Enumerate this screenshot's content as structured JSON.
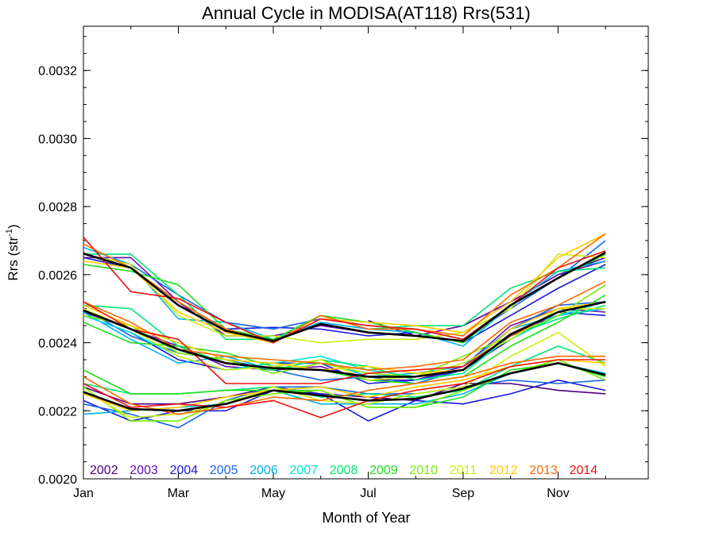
{
  "chart_data": {
    "type": "line",
    "title": "Annual Cycle in MODISA(AT118) Rrs(531)",
    "xlabel": "Month of Year",
    "ylabel": "Rrs (str",
    "ylabel_sup": "-1",
    "ylabel_end": ")",
    "xlim": [
      1,
      12.9
    ],
    "ylim": [
      0.002,
      0.00333
    ],
    "x_ticks": [
      {
        "x": 1,
        "label": "Jan"
      },
      {
        "x": 3,
        "label": "Mar"
      },
      {
        "x": 5,
        "label": "May"
      },
      {
        "x": 7,
        "label": "Jul"
      },
      {
        "x": 9,
        "label": "Sep"
      },
      {
        "x": 11,
        "label": "Nov"
      }
    ],
    "y_ticks": [
      {
        "y": 0.002,
        "label": "0.0020"
      },
      {
        "y": 0.0022,
        "label": "0.0022"
      },
      {
        "y": 0.0024,
        "label": "0.0024"
      },
      {
        "y": 0.0026,
        "label": "0.0026"
      },
      {
        "y": 0.0028,
        "label": "0.0028"
      },
      {
        "y": 0.003,
        "label": "0.0030"
      },
      {
        "y": 0.0032,
        "label": "0.0032"
      }
    ],
    "x": [
      1,
      2,
      3,
      4,
      5,
      6,
      7,
      8,
      9,
      10,
      11,
      12
    ],
    "legend": [
      {
        "label": "2002",
        "color": "#4b0082"
      },
      {
        "label": "2003",
        "color": "#6a0dad"
      },
      {
        "label": "2004",
        "color": "#1a1ad9"
      },
      {
        "label": "2005",
        "color": "#1565e6"
      },
      {
        "label": "2006",
        "color": "#00b0f0"
      },
      {
        "label": "2007",
        "color": "#00e5d8"
      },
      {
        "label": "2008",
        "color": "#00e676"
      },
      {
        "label": "2009",
        "color": "#22dd22"
      },
      {
        "label": "2010",
        "color": "#77ee00"
      },
      {
        "label": "2011",
        "color": "#ccee11"
      },
      {
        "label": "2012",
        "color": "#ffcc00"
      },
      {
        "label": "2013",
        "color": "#ff6a00"
      },
      {
        "label": "2014",
        "color": "#ee1111"
      }
    ],
    "series": [
      {
        "color": "#4b0082",
        "values": [
          null,
          null,
          null,
          null,
          null,
          null,
          0.002465,
          0.00242,
          0.00245,
          0.00252,
          0.0026,
          0.00265
        ]
      },
      {
        "color": "#6a0dad",
        "values": [
          0.00265,
          0.00265,
          0.00252,
          0.00242,
          0.00242,
          0.00245,
          0.00243,
          0.00242,
          0.00245,
          0.00252,
          0.0026,
          0.00264
        ]
      },
      {
        "color": "#1a1ad9",
        "values": [
          0.00265,
          0.00262,
          0.00252,
          0.00244,
          0.002445,
          0.00244,
          0.00242,
          0.00243,
          0.0024,
          0.00248,
          0.00256,
          0.00263
        ]
      },
      {
        "color": "#1565e6",
        "values": [
          0.00266,
          0.00263,
          0.00254,
          0.00246,
          0.00244,
          0.00247,
          0.00245,
          0.00244,
          0.00241,
          0.0025,
          0.00259,
          0.0027
        ]
      },
      {
        "color": "#00b0f0",
        "values": [
          0.00268,
          0.00263,
          0.00247,
          0.00246,
          0.00241,
          0.00246,
          0.00244,
          0.00243,
          0.00239,
          0.00251,
          0.00261,
          0.00264
        ]
      },
      {
        "color": "#00e676",
        "values": [
          0.00266,
          0.00266,
          0.00254,
          0.00241,
          0.00241,
          0.00248,
          0.00244,
          0.00245,
          0.00245,
          0.00256,
          0.00261,
          0.00262
        ]
      },
      {
        "color": "#22dd22",
        "values": [
          0.00263,
          0.00261,
          0.00257,
          0.00244,
          0.00241,
          0.00248,
          0.00246,
          0.00243,
          0.0024,
          0.00251,
          0.00259,
          0.00266
        ]
      },
      {
        "color": "#ccee11",
        "values": [
          0.00266,
          0.00263,
          0.00248,
          0.00242,
          0.00242,
          0.0024,
          0.00241,
          0.00241,
          0.00243,
          0.0025,
          0.00266,
          0.00265
        ]
      },
      {
        "color": "#ffcc00",
        "values": [
          0.00264,
          0.00262,
          0.00249,
          0.00243,
          0.0024,
          0.00247,
          0.00246,
          0.00245,
          0.00243,
          0.00252,
          0.00265,
          0.00272
        ]
      },
      {
        "color": "#ff6a00",
        "values": [
          0.00269,
          0.00262,
          0.00252,
          0.00244,
          0.0024,
          0.00248,
          0.00244,
          0.00244,
          0.00242,
          0.00254,
          0.00262,
          0.00272
        ]
      },
      {
        "color": "#ee1111",
        "values": [
          0.00271,
          0.00255,
          0.00253,
          0.00246,
          0.0024,
          0.00247,
          0.00245,
          0.00244,
          0.00241,
          0.00251,
          0.00262,
          0.00267
        ]
      },
      {
        "color": "#6a0dad",
        "values": [
          0.00249,
          0.00244,
          0.00239,
          0.00233,
          0.00232,
          0.00233,
          0.00229,
          0.00229,
          0.00233,
          0.00245,
          0.0025,
          0.00249
        ]
      },
      {
        "color": "#1a1ad9",
        "values": [
          0.00248,
          0.00243,
          0.00235,
          0.00232,
          0.00234,
          0.00234,
          0.00228,
          0.00229,
          0.00232,
          0.00241,
          0.00249,
          0.00248
        ]
      },
      {
        "color": "#1565e6",
        "values": [
          0.0025,
          0.00242,
          0.00237,
          0.00235,
          0.00232,
          0.00229,
          0.0023,
          0.00228,
          0.00232,
          0.00244,
          0.00251,
          0.00252
        ]
      },
      {
        "color": "#00b0f0",
        "values": [
          0.00249,
          0.00241,
          0.00234,
          0.00236,
          0.00232,
          0.00235,
          0.0023,
          0.00231,
          0.00233,
          0.00244,
          0.00248,
          0.0025
        ]
      },
      {
        "color": "#00e5d8",
        "values": [
          0.00248,
          0.00243,
          0.00236,
          0.00232,
          0.00234,
          0.00236,
          0.00232,
          0.0023,
          0.00234,
          0.00241,
          0.00248,
          0.00252
        ]
      },
      {
        "color": "#00e676",
        "values": [
          0.00251,
          0.0025,
          0.00239,
          0.00234,
          0.00232,
          0.00235,
          0.00233,
          0.00229,
          0.00231,
          0.00242,
          0.00247,
          0.00251
        ]
      },
      {
        "color": "#22dd22",
        "values": [
          0.00246,
          0.0024,
          0.00239,
          0.00237,
          0.00233,
          0.00232,
          0.00229,
          0.00228,
          0.0023,
          0.00239,
          0.00246,
          0.00254
        ]
      },
      {
        "color": "#77ee00",
        "values": [
          0.00248,
          0.00245,
          0.00237,
          0.00235,
          0.00231,
          0.00234,
          0.00231,
          0.0023,
          0.00236,
          0.00242,
          0.00248,
          0.00257
        ]
      },
      {
        "color": "#ccee11",
        "values": [
          0.0025,
          0.00244,
          0.00236,
          0.00232,
          0.00233,
          0.00235,
          0.00229,
          0.0023,
          0.00234,
          0.00241,
          0.0025,
          0.0025
        ]
      },
      {
        "color": "#ffcc00",
        "values": [
          0.00251,
          0.00245,
          0.0024,
          0.00235,
          0.00234,
          0.00232,
          0.00233,
          0.00231,
          0.00232,
          0.00244,
          0.0025,
          0.00252
        ]
      },
      {
        "color": "#ff6a00",
        "values": [
          0.00252,
          0.00246,
          0.00238,
          0.00236,
          0.00235,
          0.00234,
          0.00232,
          0.00233,
          0.00235,
          0.00246,
          0.00251,
          0.00258
        ]
      },
      {
        "color": "#ee1111",
        "values": [
          0.00252,
          0.00244,
          0.00241,
          0.00228,
          0.00228,
          0.00228,
          0.00231,
          0.00232,
          0.00233,
          0.00242,
          0.00249,
          0.00252
        ]
      },
      {
        "color": "#4b0082",
        "values": [
          0.00227,
          0.00222,
          0.00222,
          0.00224,
          0.00227,
          0.00225,
          0.00224,
          0.00223,
          0.00228,
          0.00228,
          0.00226,
          0.00225
        ]
      },
      {
        "color": "#1a1ad9",
        "values": [
          0.00223,
          0.00217,
          0.0022,
          0.0022,
          0.00226,
          0.00225,
          0.00217,
          0.00223,
          0.00222,
          0.00225,
          0.00229,
          0.00226
        ]
      },
      {
        "color": "#1565e6",
        "values": [
          0.00222,
          0.00219,
          0.00215,
          0.00223,
          0.00227,
          0.00227,
          0.00225,
          0.00225,
          0.00227,
          0.00229,
          0.00228,
          0.00229
        ]
      },
      {
        "color": "#00b0f0",
        "values": [
          0.00219,
          0.0022,
          0.00221,
          0.00222,
          0.00226,
          0.00222,
          0.00222,
          0.00222,
          0.00225,
          0.00231,
          0.00234,
          0.00231
        ]
      },
      {
        "color": "#00e676",
        "values": [
          0.00228,
          0.00225,
          0.00225,
          0.00226,
          0.00227,
          0.00224,
          0.00225,
          0.00224,
          0.00226,
          0.00233,
          0.00239,
          0.00234
        ]
      },
      {
        "color": "#22dd22",
        "values": [
          0.00232,
          0.00225,
          0.00225,
          0.00226,
          0.00226,
          0.00226,
          0.00221,
          0.00221,
          0.00224,
          0.00232,
          0.00234,
          0.0023
        ]
      },
      {
        "color": "#77ee00",
        "values": [
          0.00227,
          0.00217,
          0.00217,
          0.00223,
          0.00225,
          0.00226,
          0.00221,
          0.00221,
          0.00226,
          0.00231,
          0.00235,
          0.00229
        ]
      },
      {
        "color": "#ccee11",
        "values": [
          0.00226,
          0.00218,
          0.00219,
          0.00222,
          0.00227,
          0.00223,
          0.00222,
          0.00225,
          0.00227,
          0.00236,
          0.00243,
          0.00233
        ]
      },
      {
        "color": "#ffcc00",
        "values": [
          0.00225,
          0.0022,
          0.00221,
          0.00224,
          0.00226,
          0.00227,
          0.00224,
          0.00227,
          0.00229,
          0.00233,
          0.00235,
          0.00234
        ]
      },
      {
        "color": "#ff6a00",
        "values": [
          0.0023,
          0.00222,
          0.00219,
          0.00221,
          0.00224,
          0.00223,
          0.00226,
          0.00228,
          0.0023,
          0.00234,
          0.00236,
          0.00236
        ]
      },
      {
        "color": "#ee1111",
        "values": [
          0.00228,
          0.00221,
          0.00222,
          0.00221,
          0.00223,
          0.00218,
          0.00223,
          0.00226,
          0.00228,
          0.00233,
          0.00235,
          0.00235
        ]
      },
      {
        "color": "#000000",
        "width": 2.6,
        "values": [
          0.002662,
          0.00262,
          0.00251,
          0.002435,
          0.002405,
          0.002455,
          0.00243,
          0.00242,
          0.002405,
          0.00251,
          0.00259,
          0.002665
        ]
      },
      {
        "color": "#000000",
        "width": 2.6,
        "values": [
          0.002495,
          0.00244,
          0.00238,
          0.00234,
          0.002325,
          0.00232,
          0.0023,
          0.0023,
          0.00232,
          0.002425,
          0.00249,
          0.00252
        ]
      },
      {
        "color": "#000000",
        "width": 2.6,
        "values": [
          0.002255,
          0.002205,
          0.0022,
          0.00222,
          0.00226,
          0.002245,
          0.00223,
          0.002235,
          0.002265,
          0.00231,
          0.00234,
          0.002305
        ]
      }
    ]
  }
}
